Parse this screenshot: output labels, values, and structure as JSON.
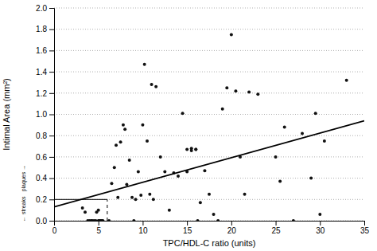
{
  "chart_data": {
    "type": "scatter",
    "xlabel": "TPC/HDL-C ratio (units)",
    "ylabel": "Intimal Area (mm²)",
    "xlim": [
      0,
      35
    ],
    "ylim": [
      0,
      2.0
    ],
    "xticks": [
      0,
      5,
      10,
      15,
      20,
      25,
      30,
      35
    ],
    "yticks": [
      {
        "value": 0.0,
        "label": "0.0"
      },
      0.2,
      0.4,
      0.6,
      0.8,
      {
        "value": 1.0,
        "label": "1.0"
      },
      1.2,
      1.4,
      1.6,
      1.8,
      {
        "value": 2.0,
        "label": "2.0"
      }
    ],
    "grid": "y",
    "annotations": [
      "← streaks",
      "plaques →"
    ],
    "series": [
      {
        "type": "scatter",
        "marker": "circle",
        "color": "#111111",
        "x": [
          3.2,
          3.5,
          3.8,
          4.0,
          4.2,
          4.3,
          4.5,
          4.7,
          4.8,
          5.0,
          5.0,
          5.1,
          5.2,
          5.3,
          5.4,
          5.5,
          6.2,
          6.5,
          6.8,
          7.0,
          7.2,
          7.5,
          7.8,
          8.0,
          8.2,
          8.5,
          8.8,
          9.0,
          9.2,
          9.5,
          9.8,
          10.0,
          10.2,
          10.5,
          10.8,
          11.0,
          11.2,
          11.5,
          12.0,
          12.5,
          13.0,
          13.5,
          14.0,
          14.5,
          15.0,
          15.0,
          15.5,
          15.5,
          16.0,
          16.0,
          16.2,
          16.5,
          17.0,
          17.5,
          18.0,
          18.5,
          19.0,
          19.5,
          20.0,
          20.5,
          21.0,
          21.5,
          22.0,
          23.0,
          25.0,
          25.5,
          26.0,
          27.0,
          28.0,
          29.0,
          29.5,
          30.0,
          30.5,
          33.0
        ],
        "values": [
          0.12,
          0.08,
          0.0,
          0.0,
          0.0,
          0.0,
          0.0,
          0.0,
          0.08,
          0.1,
          0.0,
          0.0,
          0.0,
          0.0,
          0.0,
          0.0,
          0.0,
          0.35,
          0.5,
          0.71,
          0.22,
          0.74,
          0.9,
          0.86,
          0.34,
          0.57,
          0.22,
          0.0,
          0.2,
          0.46,
          0.24,
          0.9,
          1.47,
          0.75,
          0.25,
          1.28,
          0.2,
          1.26,
          0.6,
          0.46,
          0.1,
          0.45,
          0.42,
          1.01,
          0.46,
          0.67,
          0.68,
          0.66,
          0.67,
          0.67,
          0.0,
          0.17,
          0.47,
          0.25,
          0.06,
          0.0,
          1.05,
          1.25,
          1.75,
          1.22,
          0.6,
          0.25,
          1.21,
          1.19,
          0.6,
          0.37,
          0.88,
          0.0,
          0.82,
          0.4,
          1.01,
          0.06,
          0.75,
          1.32
        ]
      },
      {
        "type": "line",
        "line_style": "solid",
        "color": "black",
        "x": [
          0,
          35
        ],
        "values": [
          0.13,
          0.94
        ]
      },
      {
        "type": "line",
        "line_style": "solid",
        "color": "black",
        "x": [
          0,
          6.0
        ],
        "values": [
          0.2,
          0.2
        ]
      },
      {
        "type": "line",
        "line_style": "dashed",
        "color": "black",
        "x": [
          6.0,
          6.0
        ],
        "values": [
          0,
          0.2
        ]
      }
    ]
  }
}
